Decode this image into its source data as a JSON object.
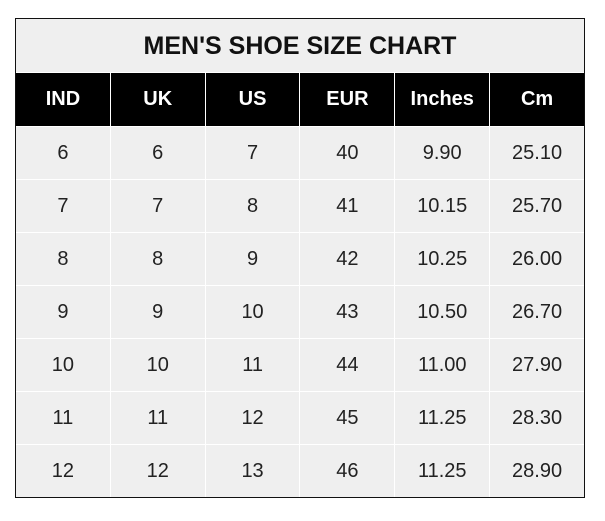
{
  "chart_data": {
    "type": "table",
    "title": "MEN'S SHOE SIZE CHART",
    "columns": [
      "IND",
      "UK",
      "US",
      "EUR",
      "Inches",
      "Cm"
    ],
    "rows": [
      [
        "6",
        "6",
        "7",
        "40",
        "9.90",
        "25.10"
      ],
      [
        "7",
        "7",
        "8",
        "41",
        "10.15",
        "25.70"
      ],
      [
        "8",
        "8",
        "9",
        "42",
        "10.25",
        "26.00"
      ],
      [
        "9",
        "9",
        "10",
        "43",
        "10.50",
        "26.70"
      ],
      [
        "10",
        "10",
        "11",
        "44",
        "11.00",
        "27.90"
      ],
      [
        "11",
        "11",
        "12",
        "45",
        "11.25",
        "28.30"
      ],
      [
        "12",
        "12",
        "13",
        "46",
        "11.25",
        "28.90"
      ]
    ],
    "colors": {
      "header_bg": "#000000",
      "header_text": "#ffffff",
      "cell_bg": "#efefef"
    }
  }
}
